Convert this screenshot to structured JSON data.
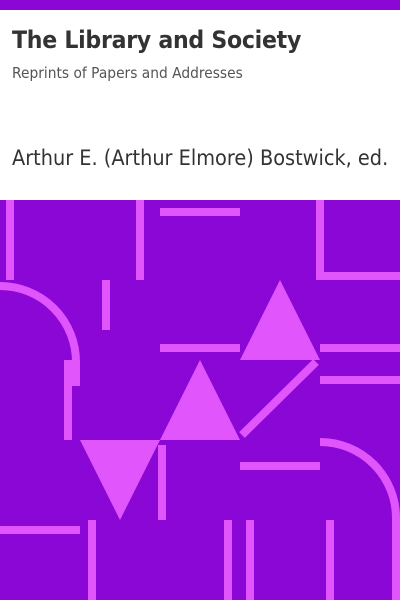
{
  "cover": {
    "title": "The Library and Society",
    "subtitle": "Reprints of Papers and Addresses",
    "author": "Arthur E. (Arthur Elmore) Bostwick, ed."
  },
  "colors": {
    "accent": "#8b07d6",
    "pattern_light": "#e056fc",
    "background": "#ffffff",
    "text": "#333333"
  }
}
